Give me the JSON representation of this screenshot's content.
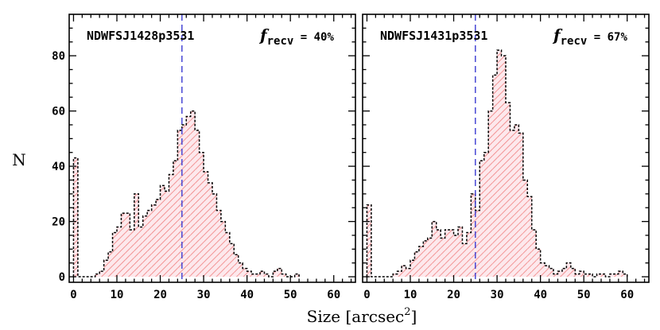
{
  "figure": {
    "ylabel": "N",
    "xlabel_main": "Size [arcsec",
    "xlabel_sup": "2",
    "xlabel_close": "]"
  },
  "colors": {
    "hatch": "#f08080",
    "fill": "#fde8ec",
    "outline": "#000000",
    "threshold_line": "#3a3ad0"
  },
  "chart_data": [
    {
      "type": "bar",
      "title": "NDWFSJ1428p3531",
      "annotation": {
        "symbol": "f",
        "subscript": "recv",
        "value": " = 40%"
      },
      "xlim": [
        -1,
        65
      ],
      "ylim": [
        -2,
        95
      ],
      "xticks": [
        0,
        10,
        20,
        30,
        40,
        50,
        60
      ],
      "yticks": [
        0,
        20,
        40,
        60,
        80
      ],
      "bin_width": 1,
      "threshold_x": 25,
      "bins_start": [
        0,
        1,
        2,
        3,
        4,
        5,
        6,
        7,
        8,
        9,
        10,
        11,
        12,
        13,
        14,
        15,
        16,
        17,
        18,
        19,
        20,
        21,
        22,
        23,
        24,
        25,
        26,
        27,
        28,
        29,
        30,
        31,
        32,
        33,
        34,
        35,
        36,
        37,
        38,
        39,
        40,
        41,
        42,
        43,
        44,
        45,
        46,
        47,
        48,
        49,
        50,
        51
      ],
      "values": [
        43,
        0,
        0,
        0,
        0,
        1,
        2,
        6,
        9,
        16,
        18,
        23,
        23,
        17,
        30,
        18,
        22,
        24,
        26,
        28,
        33,
        31,
        37,
        42,
        53,
        55,
        58,
        60,
        53,
        45,
        38,
        34,
        30,
        24,
        20,
        16,
        12,
        8,
        5,
        3,
        2,
        1,
        1,
        2,
        1,
        0,
        2,
        3,
        1,
        0,
        0,
        1
      ]
    },
    {
      "type": "bar",
      "title": "NDWFSJ1431p3531",
      "annotation": {
        "symbol": "f",
        "subscript": "recv",
        "value": " = 67%"
      },
      "xlim": [
        -1,
        65
      ],
      "ylim": [
        -2,
        95
      ],
      "xticks": [
        0,
        10,
        20,
        30,
        40,
        50,
        60
      ],
      "yticks": [
        0,
        20,
        40,
        60,
        80
      ],
      "bin_width": 1,
      "threshold_x": 25,
      "bins_start": [
        0,
        1,
        2,
        3,
        4,
        5,
        6,
        7,
        8,
        9,
        10,
        11,
        12,
        13,
        14,
        15,
        16,
        17,
        18,
        19,
        20,
        21,
        22,
        23,
        24,
        25,
        26,
        27,
        28,
        29,
        30,
        31,
        32,
        33,
        34,
        35,
        36,
        37,
        38,
        39,
        40,
        41,
        42,
        43,
        44,
        45,
        46,
        47,
        48,
        49,
        50,
        51,
        52,
        53,
        54,
        55,
        56,
        57,
        58,
        59
      ],
      "values": [
        26,
        0,
        0,
        0,
        0,
        0,
        1,
        2,
        4,
        3,
        6,
        9,
        11,
        13,
        14,
        20,
        17,
        14,
        17,
        17,
        15,
        18,
        12,
        16,
        30,
        24,
        42,
        45,
        60,
        73,
        82,
        80,
        63,
        53,
        55,
        52,
        35,
        29,
        17,
        10,
        5,
        4,
        3,
        1,
        2,
        3,
        5,
        3,
        1,
        2,
        1,
        1,
        0,
        1,
        1,
        0,
        1,
        1,
        2,
        1
      ]
    }
  ]
}
